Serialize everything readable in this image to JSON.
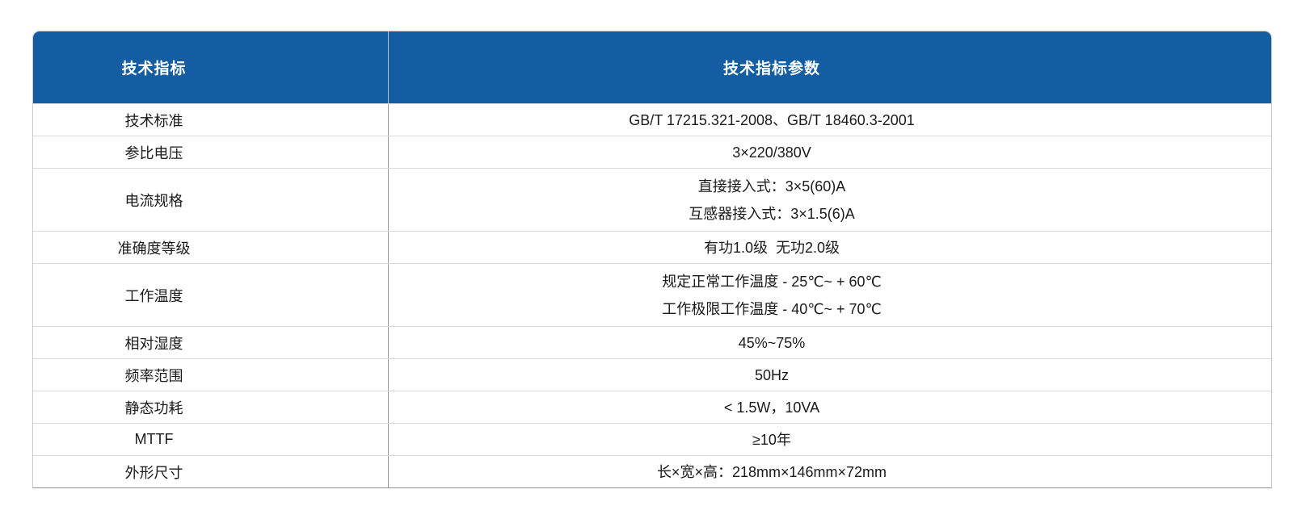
{
  "colors": {
    "header_background": "#155da3",
    "header_text": "#ffffff",
    "body_text": "#1a1a1a",
    "row_divider": "#d9d9d9",
    "column_divider": "#9a9a9a"
  },
  "table": {
    "headers": {
      "indicator": "技术指标",
      "parameter": "技术指标参数"
    },
    "rows": [
      {
        "label": "技术标准",
        "values": [
          "GB/T 17215.321-2008、GB/T 18460.3-2001"
        ]
      },
      {
        "label": "参比电压",
        "values": [
          "3×220/380V"
        ]
      },
      {
        "label": "电流规格",
        "values": [
          "直接接入式：3×5(60)A",
          "互感器接入式：3×1.5(6)A"
        ]
      },
      {
        "label": "准确度等级",
        "values": [
          "有功1.0级  无功2.0级"
        ]
      },
      {
        "label": "工作温度",
        "values": [
          "规定正常工作温度 - 25℃~ + 60℃",
          "工作极限工作温度 - 40℃~ + 70℃"
        ]
      },
      {
        "label": "相对湿度",
        "values": [
          "45%~75%"
        ]
      },
      {
        "label": "频率范围",
        "values": [
          "50Hz"
        ]
      },
      {
        "label": "静态功耗",
        "values": [
          "< 1.5W，10VA"
        ]
      },
      {
        "label": "MTTF",
        "values": [
          "≥10年"
        ]
      },
      {
        "label": "外形尺寸",
        "values": [
          "长×宽×高：218mm×146mm×72mm"
        ]
      }
    ]
  }
}
